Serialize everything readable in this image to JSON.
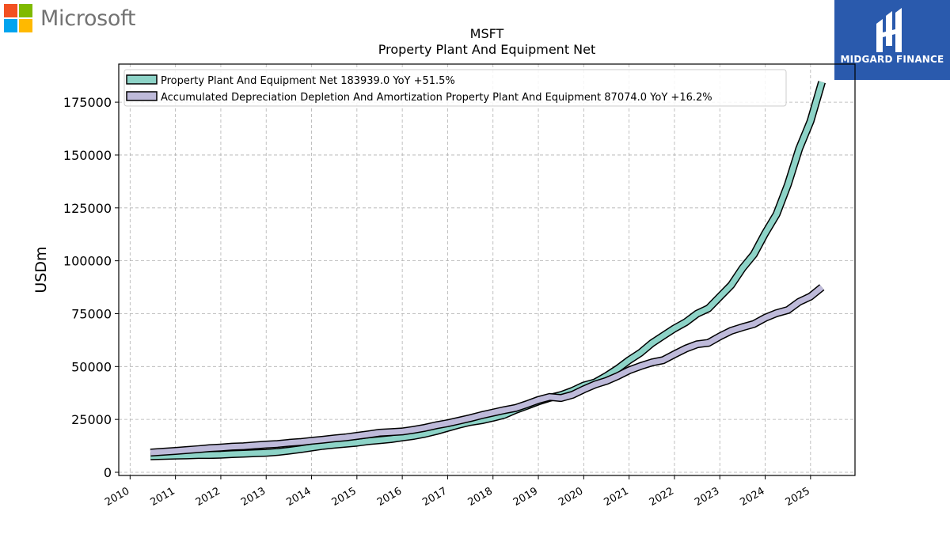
{
  "branding": {
    "microsoft_text": "Microsoft",
    "microsoft_colors": [
      "#f25022",
      "#7fba00",
      "#00a4ef",
      "#ffb900"
    ],
    "midgard_text": "MIDGARD FINANCE",
    "midgard_color": "#2a5aad"
  },
  "chart_data": {
    "type": "line",
    "title": "MSFT",
    "subtitle": "Property Plant And Equipment Net",
    "xlabel": "",
    "ylabel": "USDm",
    "xlim": [
      2009.75,
      2025.98
    ],
    "ylim": [
      -1500,
      193000
    ],
    "x_ticks": [
      "2010",
      "2011",
      "2012",
      "2013",
      "2014",
      "2015",
      "2016",
      "2017",
      "2018",
      "2019",
      "2020",
      "2021",
      "2022",
      "2023",
      "2024",
      "2025"
    ],
    "y_ticks": [
      "0",
      "25000",
      "50000",
      "75000",
      "100000",
      "125000",
      "150000",
      "175000"
    ],
    "grid": true,
    "legend_position": "top-left",
    "series": [
      {
        "name": "Property Plant And Equipment Net  183939.0 YoY +51.5%",
        "color": "#8dd3c7",
        "points": [
          [
            2010.45,
            7600
          ],
          [
            2010.7,
            7700
          ],
          [
            2011.0,
            7900
          ],
          [
            2011.25,
            8000
          ],
          [
            2011.5,
            8200
          ],
          [
            2011.75,
            8200
          ],
          [
            2012.0,
            8300
          ],
          [
            2012.25,
            8600
          ],
          [
            2012.5,
            8800
          ],
          [
            2012.75,
            9000
          ],
          [
            2013.0,
            9200
          ],
          [
            2013.25,
            9600
          ],
          [
            2013.5,
            10200
          ],
          [
            2013.75,
            10900
          ],
          [
            2014.0,
            11700
          ],
          [
            2014.25,
            12500
          ],
          [
            2014.5,
            13000
          ],
          [
            2014.75,
            13500
          ],
          [
            2015.0,
            14000
          ],
          [
            2015.25,
            14700
          ],
          [
            2015.5,
            15200
          ],
          [
            2015.75,
            15700
          ],
          [
            2016.0,
            16500
          ],
          [
            2016.25,
            17200
          ],
          [
            2016.5,
            18200
          ],
          [
            2016.75,
            19500
          ],
          [
            2017.0,
            21000
          ],
          [
            2017.25,
            22500
          ],
          [
            2017.5,
            23800
          ],
          [
            2017.75,
            24600
          ],
          [
            2018.0,
            25800
          ],
          [
            2018.25,
            27200
          ],
          [
            2018.5,
            29500
          ],
          [
            2018.75,
            31500
          ],
          [
            2019.0,
            33500
          ],
          [
            2019.25,
            35200
          ],
          [
            2019.5,
            36500
          ],
          [
            2019.75,
            38500
          ],
          [
            2020.0,
            41000
          ],
          [
            2020.25,
            42500
          ],
          [
            2020.5,
            45500
          ],
          [
            2020.75,
            49000
          ],
          [
            2021.0,
            53000
          ],
          [
            2021.25,
            56500
          ],
          [
            2021.5,
            61000
          ],
          [
            2021.75,
            64500
          ],
          [
            2022.0,
            68000
          ],
          [
            2022.25,
            71000
          ],
          [
            2022.5,
            75000
          ],
          [
            2022.75,
            77500
          ],
          [
            2023.0,
            83000
          ],
          [
            2023.25,
            88500
          ],
          [
            2023.5,
            96500
          ],
          [
            2023.75,
            103000
          ],
          [
            2024.0,
            113000
          ],
          [
            2024.25,
            122000
          ],
          [
            2024.5,
            136000
          ],
          [
            2024.75,
            153000
          ],
          [
            2025.0,
            166000
          ],
          [
            2025.25,
            184500
          ]
        ]
      },
      {
        "name": "Accumulated Depreciation Depletion And Amortization Property Plant And Equipment  87074.0 YoY +16.2%",
        "color": "#bebada",
        "points": [
          [
            2010.45,
            9300
          ],
          [
            2010.7,
            9700
          ],
          [
            2011.0,
            10100
          ],
          [
            2011.25,
            10500
          ],
          [
            2011.5,
            10900
          ],
          [
            2011.75,
            11400
          ],
          [
            2012.0,
            11700
          ],
          [
            2012.25,
            12100
          ],
          [
            2012.5,
            12300
          ],
          [
            2012.75,
            12700
          ],
          [
            2013.0,
            13100
          ],
          [
            2013.25,
            13400
          ],
          [
            2013.5,
            13900
          ],
          [
            2013.75,
            14300
          ],
          [
            2014.0,
            14900
          ],
          [
            2014.25,
            15400
          ],
          [
            2014.5,
            16000
          ],
          [
            2014.75,
            16500
          ],
          [
            2015.0,
            17200
          ],
          [
            2015.25,
            17900
          ],
          [
            2015.5,
            18700
          ],
          [
            2015.75,
            19000
          ],
          [
            2016.0,
            19300
          ],
          [
            2016.25,
            20100
          ],
          [
            2016.5,
            21000
          ],
          [
            2016.75,
            22200
          ],
          [
            2017.0,
            23200
          ],
          [
            2017.25,
            24400
          ],
          [
            2017.5,
            25600
          ],
          [
            2017.75,
            27000
          ],
          [
            2018.0,
            28200
          ],
          [
            2018.25,
            29400
          ],
          [
            2018.5,
            30400
          ],
          [
            2018.75,
            32200
          ],
          [
            2019.0,
            34200
          ],
          [
            2019.25,
            35600
          ],
          [
            2019.5,
            35100
          ],
          [
            2019.75,
            36600
          ],
          [
            2020.0,
            39200
          ],
          [
            2020.25,
            41500
          ],
          [
            2020.5,
            43200
          ],
          [
            2020.75,
            45500
          ],
          [
            2021.0,
            48200
          ],
          [
            2021.25,
            50200
          ],
          [
            2021.5,
            51900
          ],
          [
            2021.75,
            53000
          ],
          [
            2022.0,
            55800
          ],
          [
            2022.25,
            58500
          ],
          [
            2022.5,
            60500
          ],
          [
            2022.75,
            61200
          ],
          [
            2023.0,
            64200
          ],
          [
            2023.25,
            66900
          ],
          [
            2023.5,
            68600
          ],
          [
            2023.75,
            70100
          ],
          [
            2024.0,
            73000
          ],
          [
            2024.25,
            75200
          ],
          [
            2024.5,
            76700
          ],
          [
            2024.75,
            80600
          ],
          [
            2025.0,
            83100
          ],
          [
            2025.25,
            87500
          ]
        ]
      }
    ]
  }
}
